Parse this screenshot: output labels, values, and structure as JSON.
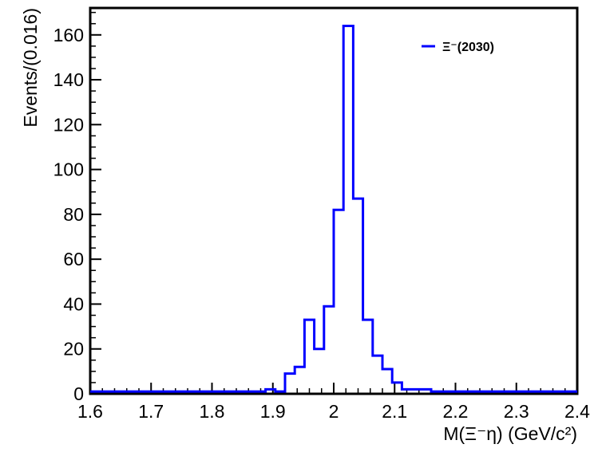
{
  "chart_data": {
    "type": "histogram",
    "xlabel": "M(Ξ⁻η) (GeV/c²)",
    "ylabel": "Events/(0.016)",
    "xlim": [
      1.6,
      2.4
    ],
    "ylim": [
      0,
      172
    ],
    "xticks": [
      "1.6",
      "1.7",
      "1.8",
      "1.9",
      "2",
      "2.1",
      "2.2",
      "2.3",
      "2.4"
    ],
    "yticks": [
      "0",
      "20",
      "40",
      "60",
      "80",
      "100",
      "120",
      "140",
      "160"
    ],
    "grid": false,
    "legend_position": "top-right",
    "bin_width": 0.016,
    "bin_start": 1.6,
    "series": [
      {
        "name": "Ξ⁻(2030)",
        "color": "#0000ff",
        "values": [
          1,
          1,
          1,
          1,
          1,
          1,
          1,
          1,
          1,
          1,
          1,
          1,
          1,
          1,
          1,
          1,
          1,
          1,
          2,
          1,
          9,
          12,
          33,
          20,
          39,
          82,
          164,
          87,
          33,
          17,
          11,
          5,
          2,
          2,
          2,
          1,
          1,
          1,
          1,
          1,
          1,
          1,
          1,
          1,
          1,
          1,
          1,
          1,
          1,
          1
        ]
      }
    ]
  }
}
